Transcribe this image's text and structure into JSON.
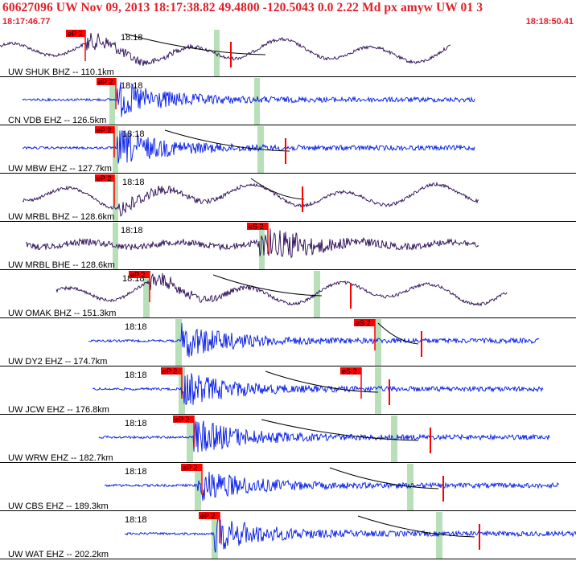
{
  "header": {
    "title": "60627096 UW Nov 09, 2013 18:17:38.82    49.4800 -120.5043  0.0 2.22 Md px amyw UW 01    3",
    "start_time": "18:17:46.77",
    "end_time": "18:18:50.41"
  },
  "colors": {
    "header_text": "#e0202a",
    "trace_dark": "#2a0a55",
    "trace_blue": "#0018e8",
    "pick_box": "#ff0000",
    "window_band": "#b8e0b8",
    "coda_line": "#000000",
    "divider": "#000000"
  },
  "minute_label": "18:18",
  "panels": [
    {
      "label": "UW SHUK BHZ -- 110.1km",
      "color": "dark",
      "pick": "eP 2",
      "kind": "long"
    },
    {
      "label": "CN VDB EHZ -- 126.5km",
      "color": "blue",
      "pick": "eP 2",
      "kind": "short"
    },
    {
      "label": "UW MBW EHZ -- 127.7km",
      "color": "blue",
      "pick": "eP 2",
      "kind": "short"
    },
    {
      "label": "UW MRBL BHZ -- 128.6km",
      "color": "dark",
      "pick": "eP 2",
      "kind": "long"
    },
    {
      "label": "UW MRBL BHE -- 128.6km",
      "color": "dark",
      "pick": "eS 2",
      "kind": "mixed"
    },
    {
      "label": "UW OMAK BHZ -- 151.3km",
      "color": "dark",
      "pick": "eP 2",
      "kind": "long"
    },
    {
      "label": "UW DY2 EHZ -- 174.7km",
      "color": "blue",
      "pick": "eS 2",
      "kind": "short"
    },
    {
      "label": "UW JCW EHZ -- 176.8km",
      "color": "blue",
      "pick": "eP 2",
      "pick2": "eS 2",
      "kind": "short"
    },
    {
      "label": "UW WRW EHZ -- 182.7km",
      "color": "blue",
      "pick": "eP 2",
      "kind": "short"
    },
    {
      "label": "UW CBS EHZ -- 189.3km",
      "color": "blue",
      "pick": "eP 2",
      "kind": "short"
    },
    {
      "label": "UW WAT EHZ -- 202.2km",
      "color": "blue",
      "pick": "eP 2",
      "kind": "short"
    }
  ]
}
